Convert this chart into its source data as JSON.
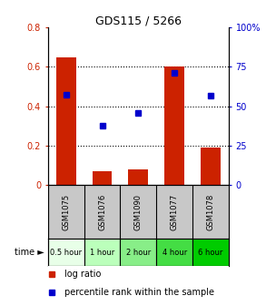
{
  "title": "GDS115 / 5266",
  "samples": [
    "GSM1075",
    "GSM1076",
    "GSM1090",
    "GSM1077",
    "GSM1078"
  ],
  "time_labels": [
    "0.5 hour",
    "1 hour",
    "2 hour",
    "4 hour",
    "6 hour"
  ],
  "time_colors": [
    "#e8ffe8",
    "#bbffbb",
    "#88ee88",
    "#44dd44",
    "#00cc00"
  ],
  "log_ratio": [
    0.65,
    0.07,
    0.08,
    0.6,
    0.19
  ],
  "percentile_pct": [
    57.5,
    37.5,
    45.5,
    71.0,
    56.5
  ],
  "bar_color": "#cc2200",
  "dot_color": "#0000cc",
  "ylim_left": [
    0,
    0.8
  ],
  "ylim_right": [
    0,
    100
  ],
  "yticks_left": [
    0,
    0.2,
    0.4,
    0.6,
    0.8
  ],
  "ytick_labels_left": [
    "0",
    "0.2",
    "0.4",
    "0.6",
    "0.8"
  ],
  "yticks_right": [
    0,
    25,
    50,
    75,
    100
  ],
  "ytick_labels_right": [
    "0",
    "25",
    "50",
    "75",
    "100%"
  ],
  "left_tick_color": "#cc2200",
  "right_tick_color": "#0000cc",
  "bg_label": "#c8c8c8",
  "legend_log": "log ratio",
  "legend_pct": "percentile rank within the sample",
  "title_fontsize": 9,
  "tick_fontsize": 7,
  "sample_fontsize": 6,
  "time_fontsize": 6,
  "legend_fontsize": 7
}
